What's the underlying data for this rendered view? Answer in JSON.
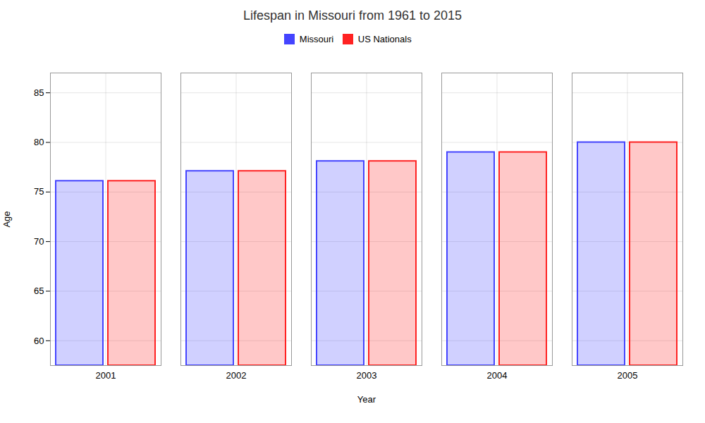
{
  "chart_data": {
    "type": "bar",
    "title": "Lifespan in Missouri from 1961 to 2015",
    "xlabel": "Year",
    "ylabel": "Age",
    "categories": [
      "2001",
      "2002",
      "2003",
      "2004",
      "2005"
    ],
    "series": [
      {
        "name": "Missouri",
        "color": "#4444ff",
        "values": [
          76.1,
          77.1,
          78.1,
          79.0,
          80.0
        ]
      },
      {
        "name": "US Nationals",
        "color": "#ff2222",
        "values": [
          76.1,
          77.1,
          78.1,
          79.0,
          80.0
        ]
      }
    ],
    "ylim": [
      57.5,
      87
    ],
    "yticks": [
      60,
      65,
      70,
      75,
      80,
      85
    ],
    "grid": true,
    "legend": "top"
  }
}
